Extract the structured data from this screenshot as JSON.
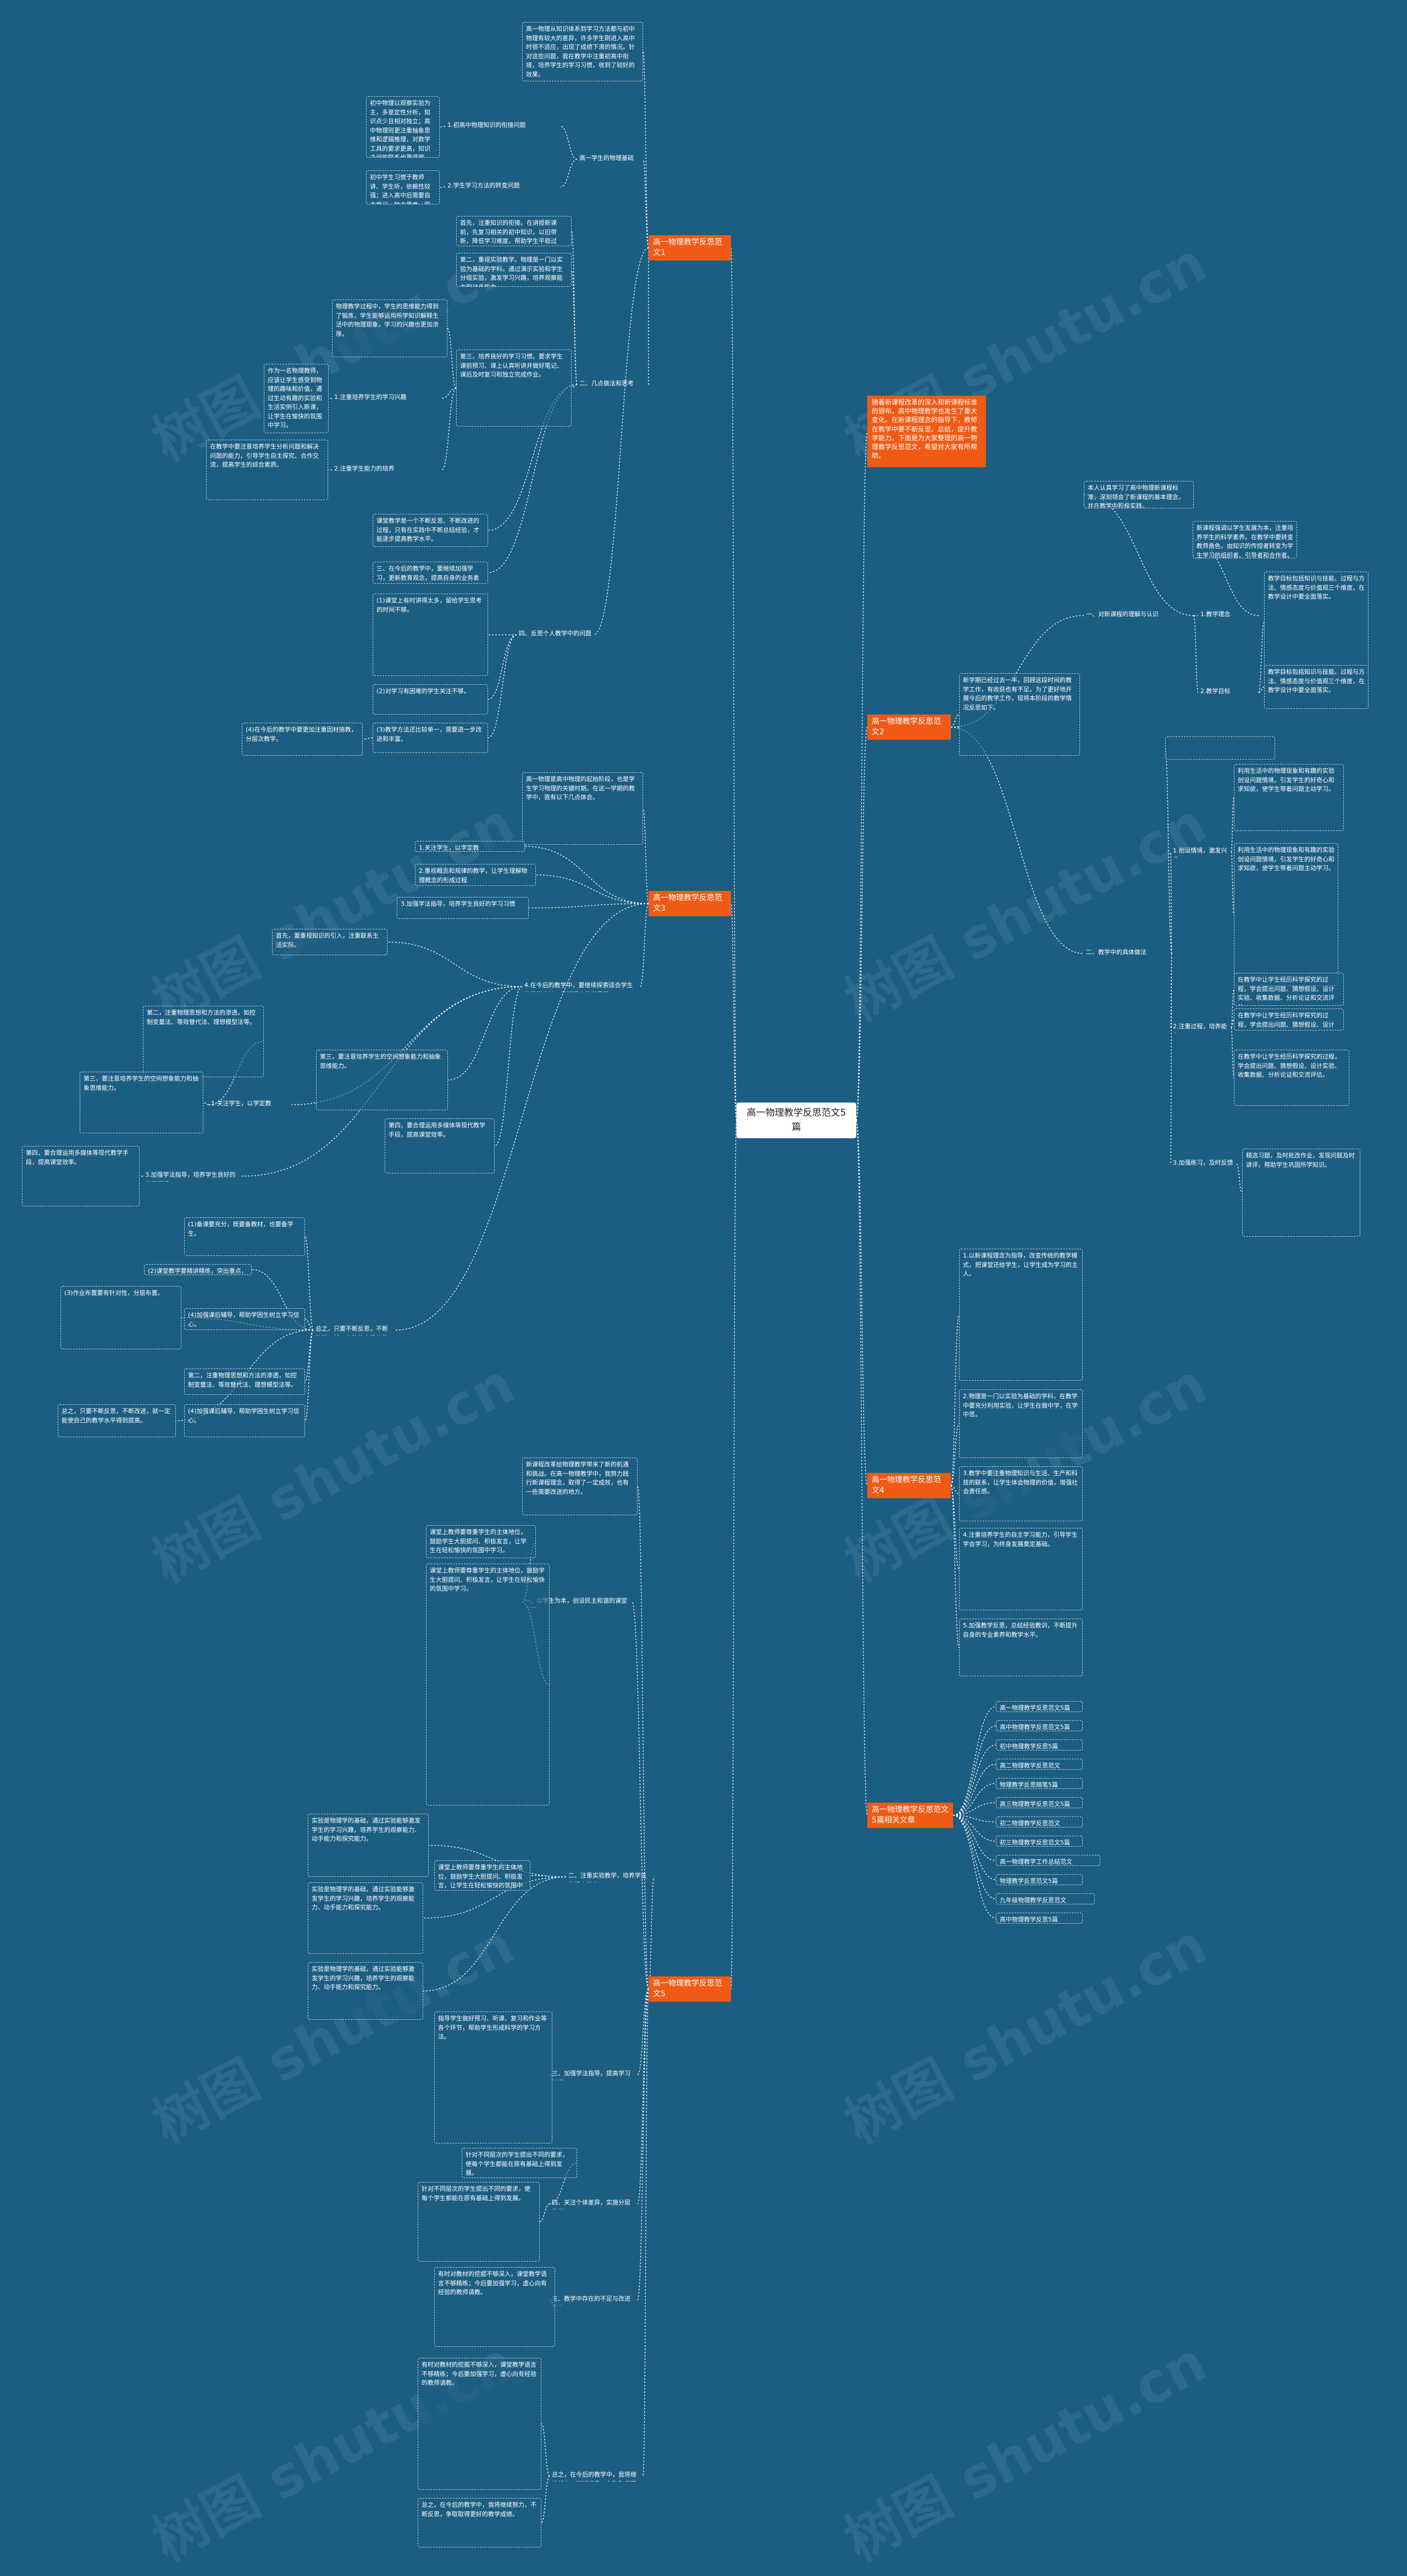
{
  "root": "高一物理教学反思范文5篇",
  "sections": {
    "s1": "高一物理教学反思范文1",
    "s2": "高一物理教学反思范文2",
    "s3": "高一物理教学反思范文3",
    "s4": "高一物理教学反思范文4",
    "s5": "高一物理教学反思范文5",
    "related": "高一物理教学反思范文5篇相关文章",
    "intro": "随着新课程改革的深入和新课程标准的颁布，高中物理教学也发生了重大变化。在新课程理念的指导下，教师在教学中要不断反思、总结，提升教学能力。下面是为大家整理的高一物理教学反思范文，希望对大家有所帮助。"
  },
  "s1": {
    "intro": "高一物理从知识体系到学习方法都与初中物理有较大的差异，许多学生刚进入高中时很不适应，出现了成绩下滑的情况。针对这些问题，我在教学中注重初高中衔接，培养学生的学习习惯，收到了较好的效果。",
    "heading": "高一学生的物理基础",
    "b1": "1.初高中物理知识的衔接问题",
    "b2": "2.学生学习方法的转变问题",
    "t1": "初中物理以观察实验为主，多是定性分析，知识点少且相对独立；高中物理则更注重抽象思维和逻辑推理，对数学工具的要求更高，知识之间的联系也更紧密。",
    "t2": "初中学生习惯于教师讲、学生听，依赖性较强；进入高中后需要自主学习、独立思考，很多学生一时难以适应。",
    "ways": "二、几点做法和思考",
    "w1": "首先，注重知识的衔接。在讲授新课前，先复习相关的初中知识，以旧带新，降低学习难度，帮助学生平稳过渡。",
    "w2": "第二，重视实验教学。物理是一门以实验为基础的学科，通过演示实验和学生分组实验，激发学习兴趣，培养观察能力和动手能力。",
    "w3": "第三，培养良好的学习习惯。要求学生课前预习、课上认真听讲并做好笔记、课后及时复习和独立完成作业。",
    "w4": "物理教学过程中，学生的思维能力得到了锻炼，学生能够运用所学知识解释生活中的物理现象，学习的兴趣也更加浓厚。",
    "w5": "1.注重培养学生的学习兴趣",
    "w5t": "作为一名物理教师，应该让学生感受到物理的趣味和价值，通过生动有趣的实验和生活实例引入新课，让学生在愉快的氛围中学习。",
    "w6": "2.注重学生能力的培养",
    "w6t": "在教学中要注意培养学生分析问题和解决问题的能力，引导学生自主探究、合作交流，提高学生的综合素质。",
    "note1": "课堂教学是一个不断反思、不断改进的过程，只有在实践中不断总结经验，才能逐步提高教学水平。",
    "note2": "三、在今后的教学中，要继续加强学习，更新教育观念，提高自身的业务素质，努力使自己的教学更加完善。",
    "reflect": "四、反思个人教学中的问题",
    "r1": "(1)课堂上有时讲得太多，留给学生思考的时间不够。",
    "r2": "(2)对学习有困难的学生关注不够。",
    "r3": "(3)教学方法还比较单一，需要进一步改进和丰富。",
    "r4": "(4)在今后的教学中要更加注重因材施教，分层次教学。"
  },
  "s2": {
    "intro": "新学期已经过去一半，回顾这段时间的教学工作，有收获也有不足。为了更好地开展今后的教学工作，现将本阶段的教学情况反思如下。",
    "h1": "一、对新课程的理解与认识",
    "h1t": "本人认真学习了高中物理新课程标准，深刻领会了新课程的基本理念，并在教学中积极实践。",
    "h2": "1.教学理念",
    "h2t": "新课程强调以学生发展为本，注重培养学生的科学素养。在教学中要转变教师角色，由知识的传授者转变为学生学习的组织者、引导者和合作者。",
    "h3": "2.教学目标",
    "h3t": "教学目标包括知识与技能、过程与方法、情感态度与价值观三个维度，在教学设计中要全面落实。",
    "h4": "二、教学中的具体做法",
    "h4a": "1.创设情境，激发兴趣",
    "h4at": "利用生活中的物理现象和有趣的实验创设问题情境，引发学生的好奇心和求知欲，使学生带着问题主动学习。",
    "h4b": "2.注重过程，培养能力",
    "h4bt": "在教学中让学生经历科学探究的过程，学会提出问题、猜想假设、设计实验、收集数据、分析论证和交流评估。",
    "h4c": "3.加强练习，及时反馈",
    "h4ct": "精选习题，及时批改作业，发现问题及时讲评，帮助学生巩固所学知识。",
    "h5": "三、存在的问题和改进措施",
    "h5t": "部分学生基础薄弱，学习主动性不强；在今后的教学中要加强个别辅导，关注每一位学生的成长。"
  },
  "s3": {
    "intro": "高一物理是高中物理的起始阶段，也是学生学习物理的关键时期。在这一学期的教学中，我有以下几点体会。",
    "p1": "1.关注学生，以学定教",
    "p2": "2.重视概念和规律的教学，让学生理解物理概念的形成过程",
    "p3": "3.加强学法指导，培养学生良好的学习习惯",
    "q1": "首先，要重视知识的引入，注重联系生活实际。",
    "q2": "第二，注重物理思想和方法的渗透，如控制变量法、等效替代法、理想模型法等。",
    "q3": "第三，要注意培养学生的空间想象能力和抽象思维能力。",
    "q4": "第四，要合理运用多媒体等现代教学手段，提高课堂效率。",
    "q5": "4.在今后的教学中，要继续探索适合学生的教学方法，不断提高教学质量。",
    "r1": "(1)备课要充分，既要备教材，也要备学生。",
    "r2": "(2)课堂教学要精讲精练，突出重点，突破难点。",
    "r3": "(3)作业布置要有针对性，分层布置。",
    "r4": "(4)加强课后辅导，帮助学困生树立学习信心。",
    "end": "总之，只要不断反思，不断改进，就一定能使自己的教学水平得到提高。"
  },
  "s4": {
    "p1": "1.以新课程理念为指导，改变传统的教学模式，把课堂还给学生，让学生成为学习的主人。",
    "p2": "2.物理是一门以实验为基础的学科，在教学中要充分利用实验，让学生在做中学，在学中思。",
    "p3": "3.教学中要注重物理知识与生活、生产和科技的联系，让学生体会物理的价值，增强社会责任感。",
    "p4": "4.注重培养学生的自主学习能力，引导学生学会学习，为终身发展奠定基础。",
    "p5": "5.加强教学反思，总结经验教训，不断提升自身的专业素养和教学水平。"
  },
  "s5": {
    "intro": "新课程改革给物理教学带来了新的机遇和挑战。在高一物理教学中，我努力践行新课程理念，取得了一定成效，也有一些需要改进的地方。",
    "h1": "一、以学生为本，创设民主和谐的课堂氛围",
    "h1t": "课堂上教师要尊重学生的主体地位，鼓励学生大胆提问、积极发言，让学生在轻松愉快的氛围中学习。",
    "h2": "二、注重实验教学，培养学生的探究能力",
    "h2t": "实验是物理学的基础，通过实验能够激发学生的学习兴趣，培养学生的观察能力、动手能力和探究能力。",
    "h3": "三、加强学法指导，提高学习效率",
    "h3t": "指导学生做好预习、听课、复习和作业等各个环节，帮助学生形成科学的学习方法。",
    "h4": "四、关注个体差异，实施分层教学",
    "h4t": "针对不同层次的学生提出不同的要求，使每个学生都能在原有基础上得到发展。",
    "h5": "五、教学中存在的不足与改进措施",
    "h5t": "有时对教材的挖掘不够深入，课堂教学语言不够精练；今后要加强学习，虚心向有经验的教师请教。",
    "end": "总之，在今后的教学中，我将继续努力，不断反思，争取取得更好的教学成绩。"
  },
  "related": [
    "高一物理教学反思范文5篇",
    "高中物理教学反思范文5篇",
    "初中物理教学反思5篇",
    "高二物理教学反思范文",
    "物理教学反思随笔5篇",
    "高三物理教学反思范文5篇",
    "初二物理教学反思范文",
    "初三物理教学反思范文5篇",
    "高一物理教学工作总结范文",
    "物理教学反思范文5篇",
    "九年级物理教学反思范文",
    "高中物理教学反思5篇"
  ],
  "watermark": "树图 shutu.cn",
  "colors": {
    "background": "#1c5e82",
    "section": "#f05a14",
    "root": "#ffffff",
    "line": "#ffffff"
  }
}
